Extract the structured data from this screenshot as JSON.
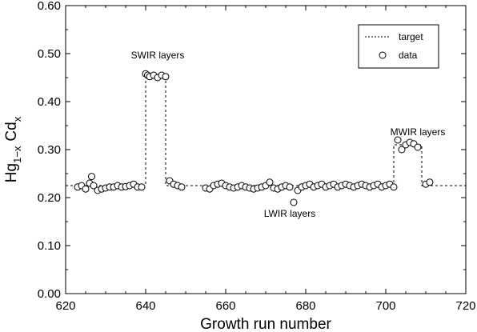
{
  "chart_data": {
    "type": "scatter",
    "xlabel": "Growth run number",
    "ylabel": "Hg1-xCdx",
    "ylabel_parts": {
      "base1": "Hg",
      "sub1": "1−x",
      "base2": "Cd",
      "sub2": "x"
    },
    "xlim": [
      620,
      720
    ],
    "ylim": [
      0.0,
      0.6
    ],
    "x_ticks": [
      620,
      640,
      660,
      680,
      700,
      720
    ],
    "x_tick_labels": [
      "620",
      "640",
      "660",
      "680",
      "700",
      "720"
    ],
    "y_ticks": [
      0.0,
      0.1,
      0.2,
      0.3,
      0.4,
      0.5,
      0.6
    ],
    "y_tick_labels": [
      "0.00",
      "0.10",
      "0.20",
      "0.30",
      "0.40",
      "0.50",
      "0.60"
    ],
    "grid": false,
    "legend_position": "top-right",
    "legend": [
      {
        "label": "target",
        "style": "dotted-line"
      },
      {
        "label": "data",
        "style": "open-circle"
      }
    ],
    "annotations": [
      {
        "text": "SWIR layers",
        "x": 643,
        "y": 0.49
      },
      {
        "text": "LWIR layers",
        "x": 676,
        "y": 0.16
      },
      {
        "text": "MWIR layers",
        "x": 708,
        "y": 0.33
      }
    ],
    "series": [
      {
        "name": "target",
        "kind": "step-line",
        "points": [
          [
            620,
            0.225
          ],
          [
            640,
            0.225
          ],
          [
            640,
            0.455
          ],
          [
            645,
            0.455
          ],
          [
            645,
            0.225
          ],
          [
            702,
            0.225
          ],
          [
            702,
            0.31
          ],
          [
            709,
            0.31
          ],
          [
            709,
            0.225
          ],
          [
            720,
            0.225
          ]
        ]
      },
      {
        "name": "data",
        "kind": "points",
        "x": [
          623,
          624,
          625,
          626,
          626.5,
          627,
          628,
          629,
          630,
          631,
          632,
          633,
          634,
          635,
          636,
          637,
          638,
          639,
          640,
          640.5,
          641,
          642,
          643,
          644,
          645,
          646,
          647,
          648,
          649,
          655,
          656,
          657,
          658,
          659,
          660,
          661,
          662,
          663,
          664,
          665,
          666,
          667,
          668,
          669,
          670,
          671,
          672,
          673,
          674,
          675,
          676,
          677,
          678,
          679,
          680,
          681,
          682,
          683,
          684,
          685,
          686,
          687,
          688,
          689,
          690,
          691,
          692,
          693,
          694,
          695,
          696,
          697,
          698,
          699,
          700,
          701,
          702,
          703,
          704,
          705,
          706,
          707,
          708,
          710,
          711
        ],
        "y": [
          0.222,
          0.225,
          0.218,
          0.23,
          0.244,
          0.225,
          0.215,
          0.218,
          0.22,
          0.222,
          0.222,
          0.225,
          0.222,
          0.223,
          0.225,
          0.228,
          0.222,
          0.222,
          0.458,
          0.455,
          0.452,
          0.455,
          0.45,
          0.455,
          0.452,
          0.235,
          0.228,
          0.225,
          0.222,
          0.22,
          0.218,
          0.225,
          0.228,
          0.23,
          0.225,
          0.222,
          0.22,
          0.222,
          0.225,
          0.222,
          0.22,
          0.218,
          0.22,
          0.222,
          0.225,
          0.232,
          0.22,
          0.218,
          0.222,
          0.225,
          0.222,
          0.19,
          0.215,
          0.222,
          0.225,
          0.228,
          0.222,
          0.225,
          0.228,
          0.222,
          0.225,
          0.228,
          0.222,
          0.225,
          0.228,
          0.225,
          0.222,
          0.225,
          0.228,
          0.225,
          0.222,
          0.225,
          0.228,
          0.222,
          0.225,
          0.228,
          0.222,
          0.32,
          0.3,
          0.31,
          0.315,
          0.312,
          0.305,
          0.228,
          0.232
        ]
      }
    ]
  }
}
